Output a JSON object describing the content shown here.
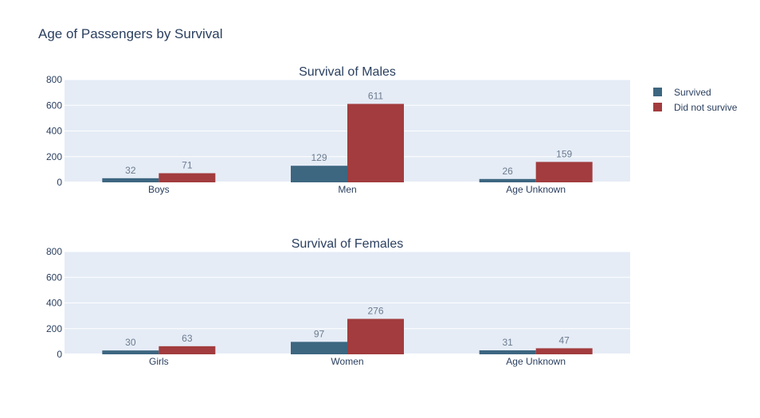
{
  "title": "Age of Passengers by Survival",
  "legend": {
    "items": [
      {
        "label": "Survived",
        "color": "#3d6680"
      },
      {
        "label": "Did not survive",
        "color": "#a23c3e"
      }
    ]
  },
  "colors": {
    "plot_bg": "#e5ecf6",
    "survived": "#3d6680",
    "did_not_survive": "#a23c3e",
    "text": "#2a3f5f",
    "label_text": "#6b7b8f"
  },
  "chart_data": [
    {
      "type": "bar",
      "title": "Survival of Males",
      "categories": [
        "Boys",
        "Men",
        "Age Unknown"
      ],
      "series": [
        {
          "name": "Survived",
          "values": [
            32,
            129,
            26
          ]
        },
        {
          "name": "Did not survive",
          "values": [
            71,
            611,
            159
          ]
        }
      ],
      "ylim": [
        0,
        800
      ],
      "yticks": [
        0,
        200,
        400,
        600,
        800
      ],
      "grid": true,
      "legend": "top-right"
    },
    {
      "type": "bar",
      "title": "Survival of Females",
      "categories": [
        "Girls",
        "Women",
        "Age Unknown"
      ],
      "series": [
        {
          "name": "Survived",
          "values": [
            30,
            97,
            31
          ]
        },
        {
          "name": "Did not survive",
          "values": [
            63,
            276,
            47
          ]
        }
      ],
      "ylim": [
        0,
        800
      ],
      "yticks": [
        0,
        200,
        400,
        600,
        800
      ],
      "grid": true,
      "legend": "top-right"
    }
  ]
}
